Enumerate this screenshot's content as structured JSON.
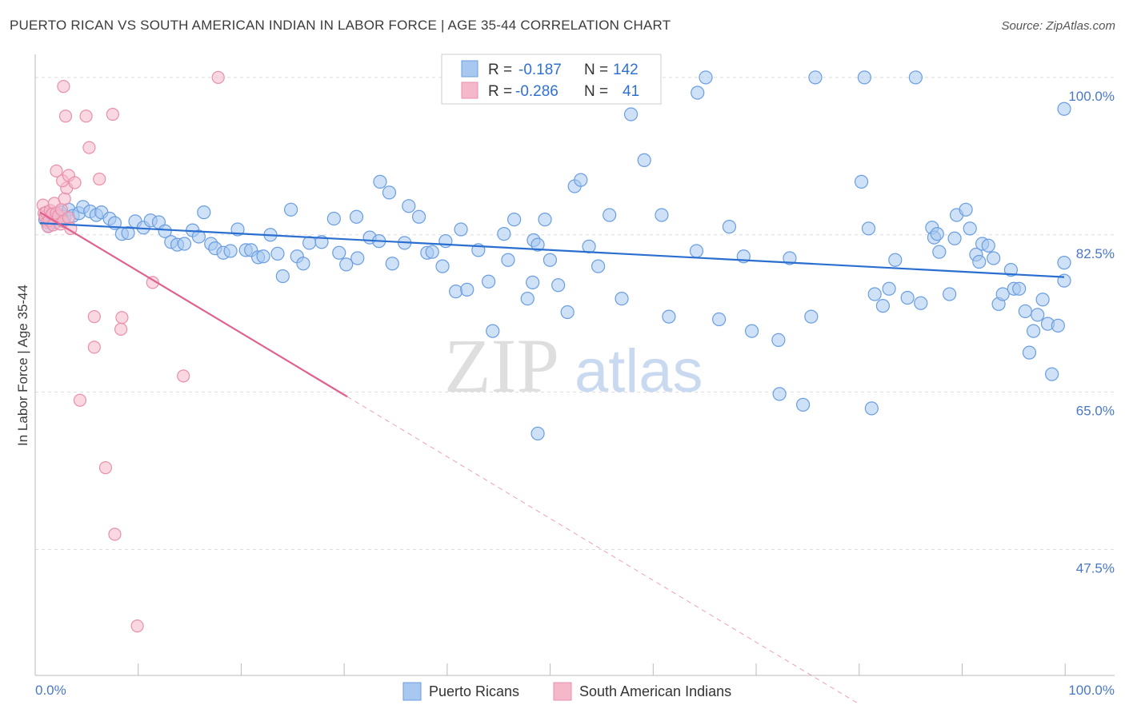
{
  "header": {
    "title": "PUERTO RICAN VS SOUTH AMERICAN INDIAN IN LABOR FORCE | AGE 35-44 CORRELATION CHART",
    "source": "Source: ZipAtlas.com"
  },
  "watermark": {
    "zip": "ZIP",
    "atlas": "atlas"
  },
  "colors": {
    "blue_fill": "#a8c8f0",
    "blue_stroke": "#6a9ee0",
    "blue_line": "#2a6fd0",
    "pink_fill": "#f5b8cb",
    "pink_stroke": "#e890aa",
    "pink_line": "#e06090",
    "grid": "#dddddd",
    "tick_text": "#4a78c8"
  },
  "legend": {
    "rows": [
      {
        "r_label": "R =",
        "r_value": "-0.187",
        "n_label": "N =",
        "n_value": "142"
      },
      {
        "r_label": "R =",
        "r_value": "-0.286",
        "n_label": "N =",
        "n_value": "41"
      }
    ]
  },
  "chart_data": {
    "type": "scatter",
    "title": "PUERTO RICAN VS SOUTH AMERICAN INDIAN IN LABOR FORCE | AGE 35-44 CORRELATION CHART",
    "xlabel": "",
    "ylabel": "In Labor Force | Age 35-44",
    "xlim": [
      0,
      100
    ],
    "ylim": [
      33.5,
      101.5
    ],
    "x_tick_labels": [
      "0.0%",
      "100.0%"
    ],
    "y_ticks": [
      47.5,
      65.0,
      82.5,
      100.0
    ],
    "y_tick_labels": [
      "47.5%",
      "65.0%",
      "82.5%",
      "100.0%"
    ],
    "grid": true,
    "legend_position": "bottom-center",
    "series": [
      {
        "name": "Puerto Ricans",
        "R": -0.187,
        "N": 142,
        "trend": {
          "x": [
            0,
            100
          ],
          "y": [
            83.8,
            77.8
          ]
        },
        "points": [
          [
            0.5,
            84.2
          ],
          [
            0.8,
            83.5
          ],
          [
            1.2,
            84.8
          ],
          [
            1.5,
            83.9
          ],
          [
            2.0,
            85.0
          ],
          [
            2.4,
            84.5
          ],
          [
            2.8,
            85.3
          ],
          [
            3.2,
            84.6
          ],
          [
            3.8,
            84.9
          ],
          [
            4.2,
            85.6
          ],
          [
            4.9,
            85.1
          ],
          [
            5.5,
            84.7
          ],
          [
            6.0,
            85.0
          ],
          [
            6.8,
            84.3
          ],
          [
            7.3,
            83.8
          ],
          [
            8.0,
            82.6
          ],
          [
            8.6,
            82.7
          ],
          [
            9.3,
            84.0
          ],
          [
            10.1,
            83.3
          ],
          [
            10.8,
            84.1
          ],
          [
            11.6,
            83.9
          ],
          [
            12.2,
            82.9
          ],
          [
            12.8,
            81.7
          ],
          [
            13.4,
            81.4
          ],
          [
            14.1,
            81.5
          ],
          [
            14.9,
            83.0
          ],
          [
            15.5,
            82.3
          ],
          [
            16.0,
            85.0
          ],
          [
            16.7,
            81.5
          ],
          [
            17.1,
            81.0
          ],
          [
            17.9,
            80.5
          ],
          [
            18.6,
            80.7
          ],
          [
            19.3,
            83.1
          ],
          [
            20.1,
            80.8
          ],
          [
            20.6,
            80.8
          ],
          [
            21.3,
            80.0
          ],
          [
            21.8,
            80.1
          ],
          [
            22.5,
            82.5
          ],
          [
            23.2,
            80.4
          ],
          [
            23.7,
            77.9
          ],
          [
            24.5,
            85.3
          ],
          [
            25.1,
            80.1
          ],
          [
            25.7,
            79.3
          ],
          [
            26.3,
            81.6
          ],
          [
            27.5,
            81.7
          ],
          [
            28.7,
            84.3
          ],
          [
            29.2,
            80.5
          ],
          [
            29.9,
            79.2
          ],
          [
            30.9,
            84.5
          ],
          [
            31.0,
            79.9
          ],
          [
            32.2,
            82.2
          ],
          [
            33.1,
            81.8
          ],
          [
            33.2,
            88.4
          ],
          [
            34.1,
            87.2
          ],
          [
            34.4,
            79.3
          ],
          [
            35.6,
            81.6
          ],
          [
            36.0,
            85.7
          ],
          [
            37.0,
            84.5
          ],
          [
            37.8,
            80.5
          ],
          [
            38.3,
            80.6
          ],
          [
            39.3,
            79.0
          ],
          [
            39.6,
            81.8
          ],
          [
            40.6,
            76.2
          ],
          [
            41.1,
            83.1
          ],
          [
            41.7,
            76.4
          ],
          [
            42.8,
            80.8
          ],
          [
            43.8,
            77.3
          ],
          [
            44.2,
            71.8
          ],
          [
            45.3,
            82.6
          ],
          [
            45.7,
            79.7
          ],
          [
            46.3,
            84.2
          ],
          [
            47.6,
            75.4
          ],
          [
            48.1,
            77.2
          ],
          [
            48.2,
            81.9
          ],
          [
            48.6,
            60.4
          ],
          [
            48.6,
            81.4
          ],
          [
            49.3,
            84.2
          ],
          [
            49.8,
            79.7
          ],
          [
            50.6,
            76.9
          ],
          [
            51.5,
            73.9
          ],
          [
            52.2,
            87.9
          ],
          [
            52.8,
            88.6
          ],
          [
            53.6,
            81.2
          ],
          [
            54.5,
            79.0
          ],
          [
            55.2,
            98.8
          ],
          [
            55.6,
            84.7
          ],
          [
            56.8,
            75.4
          ],
          [
            57.7,
            95.9
          ],
          [
            58.1,
            100.0
          ],
          [
            59.0,
            90.8
          ],
          [
            60.7,
            84.7
          ],
          [
            61.4,
            73.4
          ],
          [
            64.1,
            80.7
          ],
          [
            64.2,
            98.3
          ],
          [
            65.0,
            100.0
          ],
          [
            66.3,
            73.1
          ],
          [
            67.3,
            83.4
          ],
          [
            68.7,
            80.1
          ],
          [
            69.5,
            71.8
          ],
          [
            72.1,
            70.8
          ],
          [
            72.2,
            64.8
          ],
          [
            73.2,
            79.9
          ],
          [
            74.5,
            63.6
          ],
          [
            75.3,
            73.4
          ],
          [
            75.7,
            100.0
          ],
          [
            80.2,
            88.4
          ],
          [
            80.5,
            100.0
          ],
          [
            80.9,
            83.2
          ],
          [
            81.2,
            63.2
          ],
          [
            81.5,
            75.9
          ],
          [
            82.3,
            74.6
          ],
          [
            82.9,
            76.5
          ],
          [
            83.5,
            79.7
          ],
          [
            84.7,
            75.5
          ],
          [
            85.5,
            100.0
          ],
          [
            86.0,
            74.9
          ],
          [
            87.1,
            83.3
          ],
          [
            87.3,
            82.2
          ],
          [
            87.6,
            82.6
          ],
          [
            87.8,
            80.6
          ],
          [
            88.8,
            75.9
          ],
          [
            89.3,
            82.1
          ],
          [
            89.5,
            84.7
          ],
          [
            90.4,
            85.3
          ],
          [
            90.8,
            83.2
          ],
          [
            91.4,
            80.3
          ],
          [
            91.7,
            79.5
          ],
          [
            92.0,
            81.5
          ],
          [
            92.6,
            81.3
          ],
          [
            93.1,
            79.9
          ],
          [
            93.6,
            74.8
          ],
          [
            94.0,
            75.9
          ],
          [
            94.8,
            78.6
          ],
          [
            95.1,
            76.5
          ],
          [
            95.6,
            76.5
          ],
          [
            96.2,
            74.0
          ],
          [
            96.6,
            69.4
          ],
          [
            97.0,
            71.8
          ],
          [
            97.4,
            73.6
          ],
          [
            97.9,
            75.3
          ],
          [
            98.4,
            72.6
          ],
          [
            98.8,
            67.0
          ],
          [
            99.4,
            72.4
          ],
          [
            100.0,
            96.5
          ],
          [
            100.0,
            79.4
          ],
          [
            100.0,
            77.4
          ]
        ]
      },
      {
        "name": "South American Indians",
        "R": -0.286,
        "N": 41,
        "trend": {
          "x": [
            0,
            30
          ],
          "y": [
            85.0,
            64.5
          ]
        },
        "trend_extension": {
          "x": [
            30,
            80
          ],
          "y": [
            64.5,
            30.3
          ]
        },
        "points": [
          [
            0.3,
            85.8
          ],
          [
            0.4,
            84.9
          ],
          [
            0.5,
            84.5
          ],
          [
            0.6,
            85.0
          ],
          [
            0.7,
            83.9
          ],
          [
            0.8,
            83.4
          ],
          [
            0.9,
            84.1
          ],
          [
            1.0,
            85.2
          ],
          [
            1.2,
            84.8
          ],
          [
            1.3,
            83.6
          ],
          [
            1.4,
            86.0
          ],
          [
            1.6,
            84.9
          ],
          [
            1.8,
            84.6
          ],
          [
            2.0,
            83.7
          ],
          [
            2.1,
            85.3
          ],
          [
            2.3,
            84.0
          ],
          [
            2.4,
            86.5
          ],
          [
            2.6,
            87.7
          ],
          [
            2.8,
            84.4
          ],
          [
            3.0,
            83.2
          ],
          [
            1.6,
            89.6
          ],
          [
            2.2,
            88.5
          ],
          [
            2.8,
            89.1
          ],
          [
            3.4,
            88.3
          ],
          [
            2.3,
            99.0
          ],
          [
            2.5,
            95.7
          ],
          [
            4.5,
            95.7
          ],
          [
            4.8,
            92.2
          ],
          [
            5.8,
            88.7
          ],
          [
            7.1,
            95.9
          ],
          [
            17.4,
            100.0
          ],
          [
            11.0,
            77.2
          ],
          [
            5.3,
            73.4
          ],
          [
            5.3,
            70.0
          ],
          [
            8.0,
            73.3
          ],
          [
            7.9,
            72.0
          ],
          [
            14.0,
            66.8
          ],
          [
            3.9,
            64.1
          ],
          [
            6.4,
            56.6
          ],
          [
            7.3,
            49.2
          ],
          [
            9.5,
            39.0
          ]
        ]
      }
    ]
  }
}
